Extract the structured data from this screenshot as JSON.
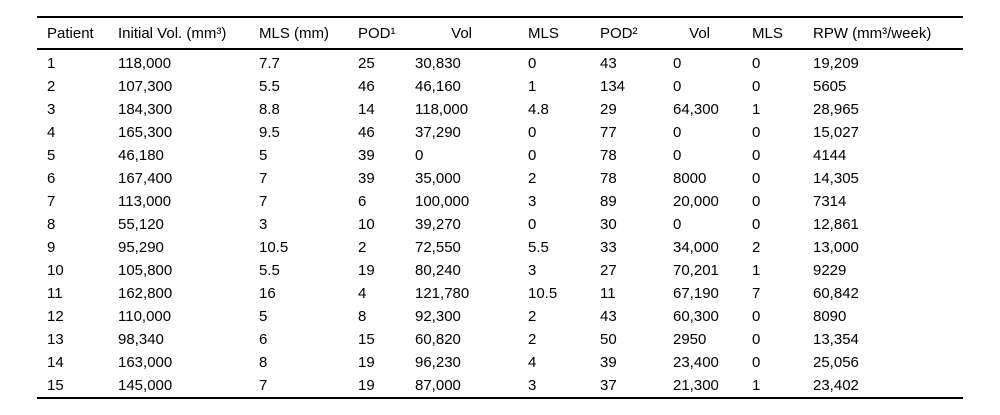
{
  "table": {
    "columns": [
      {
        "label": "Patient"
      },
      {
        "label": "Initial Vol. (mm³)"
      },
      {
        "label": "MLS (mm)"
      },
      {
        "label": "POD¹"
      },
      {
        "label": "Vol"
      },
      {
        "label": "MLS"
      },
      {
        "label": "POD²"
      },
      {
        "label": "Vol"
      },
      {
        "label": "MLS"
      },
      {
        "label": "RPW (mm³/week)"
      }
    ],
    "rows": [
      [
        "1",
        "118,000",
        "7.7",
        "25",
        "30,830",
        "0",
        "43",
        "0",
        "0",
        "19,209"
      ],
      [
        "2",
        "107,300",
        "5.5",
        "46",
        "46,160",
        "1",
        "134",
        "0",
        "0",
        "5605"
      ],
      [
        "3",
        "184,300",
        "8.8",
        "14",
        "118,000",
        "4.8",
        "29",
        "64,300",
        "1",
        "28,965"
      ],
      [
        "4",
        "165,300",
        "9.5",
        "46",
        "37,290",
        "0",
        "77",
        "0",
        "0",
        "15,027"
      ],
      [
        "5",
        "46,180",
        "5",
        "39",
        "0",
        "0",
        "78",
        "0",
        "0",
        "4144"
      ],
      [
        "6",
        "167,400",
        "7",
        "39",
        "35,000",
        "2",
        "78",
        "8000",
        "0",
        "14,305"
      ],
      [
        "7",
        "113,000",
        "7",
        "6",
        "100,000",
        "3",
        "89",
        "20,000",
        "0",
        "7314"
      ],
      [
        "8",
        "55,120",
        "3",
        "10",
        "39,270",
        "0",
        "30",
        "0",
        "0",
        "12,861"
      ],
      [
        "9",
        "95,290",
        "10.5",
        "2",
        "72,550",
        "5.5",
        "33",
        "34,000",
        "2",
        "13,000"
      ],
      [
        "10",
        "105,800",
        "5.5",
        "19",
        "80,240",
        "3",
        "27",
        "70,201",
        "1",
        "9229"
      ],
      [
        "11",
        "162,800",
        "16",
        "4",
        "121,780",
        "10.5",
        "11",
        "67,190",
        "7",
        "60,842"
      ],
      [
        "12",
        "110,000",
        "5",
        "8",
        "92,300",
        "2",
        "43",
        "60,300",
        "0",
        "8090"
      ],
      [
        "13",
        "98,340",
        "6",
        "15",
        "60,820",
        "2",
        "50",
        "2950",
        "0",
        "13,354"
      ],
      [
        "14",
        "163,000",
        "8",
        "19",
        "96,230",
        "4",
        "39",
        "23,400",
        "0",
        "25,056"
      ],
      [
        "15",
        "145,000",
        "7",
        "19",
        "87,000",
        "3",
        "37",
        "21,300",
        "1",
        "23,402"
      ]
    ]
  },
  "chart_data": {
    "type": "table",
    "title": "",
    "columns": [
      "Patient",
      "Initial Vol. (mm³)",
      "MLS (mm)",
      "POD¹",
      "Vol",
      "MLS",
      "POD²",
      "Vol",
      "MLS",
      "RPW (mm³/week)"
    ],
    "rows": [
      [
        1,
        118000,
        7.7,
        25,
        30830,
        0,
        43,
        0,
        0,
        19209
      ],
      [
        2,
        107300,
        5.5,
        46,
        46160,
        1,
        134,
        0,
        0,
        5605
      ],
      [
        3,
        184300,
        8.8,
        14,
        118000,
        4.8,
        29,
        64300,
        1,
        28965
      ],
      [
        4,
        165300,
        9.5,
        46,
        37290,
        0,
        77,
        0,
        0,
        15027
      ],
      [
        5,
        46180,
        5,
        39,
        0,
        0,
        78,
        0,
        0,
        4144
      ],
      [
        6,
        167400,
        7,
        39,
        35000,
        2,
        78,
        8000,
        0,
        14305
      ],
      [
        7,
        113000,
        7,
        6,
        100000,
        3,
        89,
        20000,
        0,
        7314
      ],
      [
        8,
        55120,
        3,
        10,
        39270,
        0,
        30,
        0,
        0,
        12861
      ],
      [
        9,
        95290,
        10.5,
        2,
        72550,
        5.5,
        33,
        34000,
        2,
        13000
      ],
      [
        10,
        105800,
        5.5,
        19,
        80240,
        3,
        27,
        70201,
        1,
        9229
      ],
      [
        11,
        162800,
        16,
        4,
        121780,
        10.5,
        11,
        67190,
        7,
        60842
      ],
      [
        12,
        110000,
        5,
        8,
        92300,
        2,
        43,
        60300,
        0,
        8090
      ],
      [
        13,
        98340,
        6,
        15,
        60820,
        2,
        50,
        2950,
        0,
        13354
      ],
      [
        14,
        163000,
        8,
        19,
        96230,
        4,
        39,
        23400,
        0,
        25056
      ],
      [
        15,
        145000,
        7,
        19,
        87000,
        3,
        37,
        21300,
        1,
        23402
      ]
    ]
  },
  "colors": {
    "text": "#000000",
    "background": "#ffffff",
    "rule": "#000000"
  }
}
